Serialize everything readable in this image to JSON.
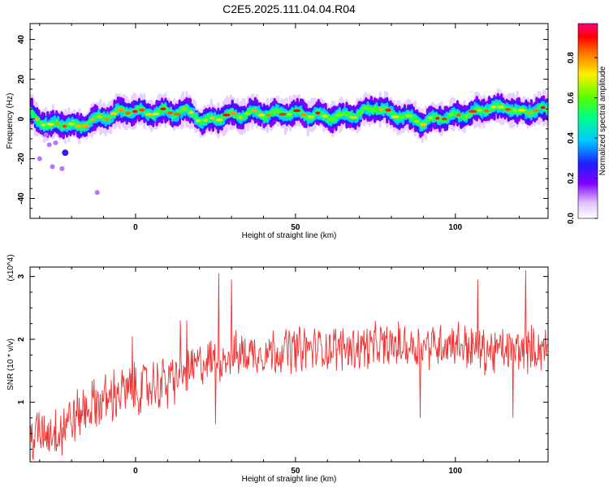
{
  "title": "C2E5.2025.111.04.04.R04",
  "chart_data": [
    {
      "type": "heatmap",
      "xlabel": "Height of straight line (km)",
      "ylabel": "Frequency (Hz)",
      "xlim": [
        -33,
        129
      ],
      "ylim": [
        -50,
        48
      ],
      "x_ticks": [
        "0",
        "50",
        "100"
      ],
      "x_tick_values": [
        0,
        50,
        100
      ],
      "y_ticks": [
        "40",
        "20",
        "0",
        "-20",
        "-40"
      ],
      "y_tick_values": [
        40,
        20,
        0,
        -20,
        -40
      ],
      "colorbar": {
        "label": "Normalized spectral amplitude",
        "range": [
          0,
          0.97
        ],
        "ticks": [
          "0.0",
          "0.2",
          "0.4",
          "0.6",
          "0.8"
        ],
        "tick_values": [
          0,
          0.2,
          0.4,
          0.6,
          0.8
        ],
        "colormap": "rainbow (white-violet-blue-cyan-green-yellow-red)"
      },
      "ridge_x": [
        -33,
        -30,
        -27,
        -24,
        -21,
        -18,
        -15,
        -12,
        -9,
        -6,
        -3,
        0,
        3,
        6,
        9,
        12,
        15,
        18,
        21,
        24,
        27,
        30,
        33,
        36,
        39,
        42,
        45,
        48,
        51,
        54,
        57,
        60,
        63,
        66,
        69,
        72,
        75,
        78,
        81,
        84,
        87,
        90,
        93,
        96,
        99,
        102,
        105,
        108,
        111,
        114,
        117,
        120,
        123,
        126,
        129
      ],
      "ridge_freq": [
        3,
        -1,
        -4,
        -2,
        -3,
        -4,
        -2,
        0,
        1,
        3,
        4,
        4,
        3,
        3,
        4,
        3,
        4,
        3,
        -2,
        0,
        1,
        2,
        2,
        3,
        3,
        2,
        3,
        3,
        3,
        2,
        2,
        1,
        1,
        2,
        2,
        4,
        6,
        4,
        2,
        1,
        0,
        -2,
        0,
        1,
        1,
        2,
        3,
        4,
        6,
        5,
        6,
        3,
        4,
        5,
        4
      ],
      "scattered_blobs": [
        [
          -27,
          -13
        ],
        [
          -25,
          -12
        ],
        [
          -28,
          -8
        ],
        [
          -22,
          -17
        ],
        [
          -30,
          -20
        ],
        [
          -26,
          -24
        ],
        [
          -23,
          -25
        ],
        [
          -12,
          -37
        ]
      ]
    },
    {
      "type": "line",
      "xlabel": "Height of straight line (km)",
      "ylabel": "SNR (10 * v/v)",
      "multiplier": "(x10^4)",
      "xlim": [
        -33,
        129
      ],
      "ylim": [
        0.05,
        3.15
      ],
      "x_ticks": [
        "0",
        "50",
        "100"
      ],
      "x_tick_values": [
        0,
        50,
        100
      ],
      "y_ticks": [
        "1",
        "2",
        "3"
      ],
      "y_tick_values": [
        1,
        2,
        3
      ],
      "series_color": "#ee3333",
      "trend_x": [
        -33,
        -25,
        -15,
        -5,
        5,
        15,
        20,
        30,
        40,
        50,
        60,
        70,
        80,
        90,
        100,
        110,
        120,
        129
      ],
      "trend_y": [
        0.45,
        0.55,
        0.9,
        1.15,
        1.25,
        1.45,
        1.6,
        1.75,
        1.8,
        1.85,
        1.85,
        1.88,
        1.9,
        1.9,
        1.95,
        1.8,
        1.85,
        1.85
      ],
      "spikes": [
        [
          26,
          3.05
        ],
        [
          30,
          2.95
        ],
        [
          122,
          3.1
        ],
        [
          107,
          2.95
        ],
        [
          14,
          2.3
        ],
        [
          -1,
          2.05
        ],
        [
          16,
          2.3
        ],
        [
          -23,
          0.15
        ],
        [
          10,
          0.9
        ],
        [
          25,
          0.65
        ],
        [
          89,
          0.75
        ],
        [
          118,
          0.75
        ]
      ]
    }
  ]
}
